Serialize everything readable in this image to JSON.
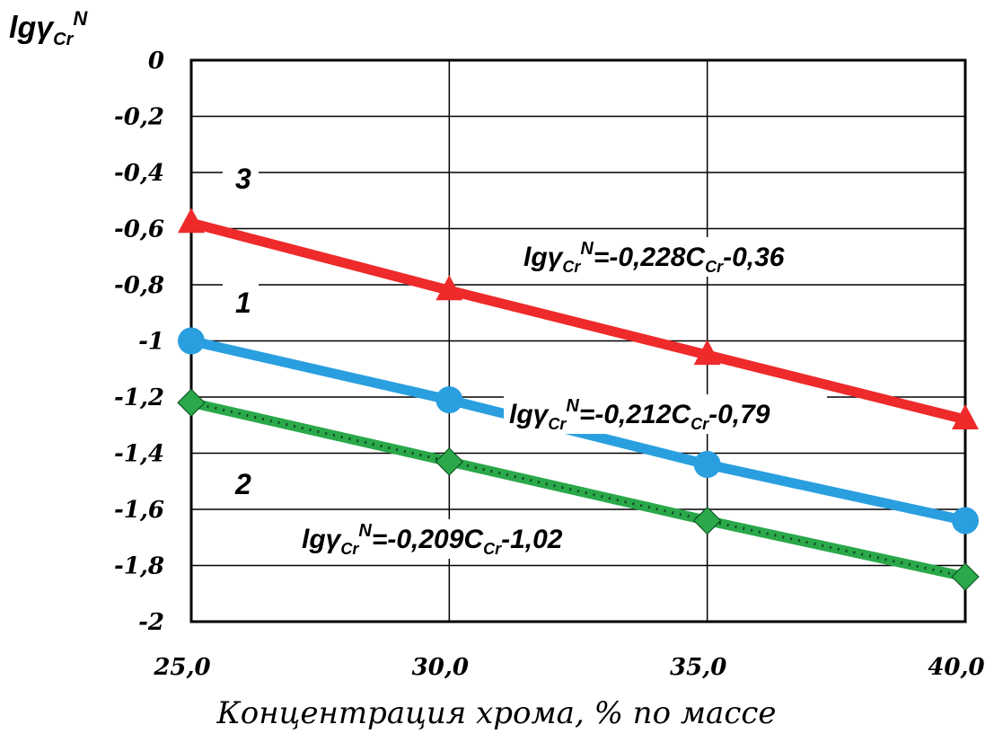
{
  "chart_data": {
    "type": "line",
    "ylabel_main": "lgγ",
    "ylabel_sub": "Cr",
    "ylabel_sup": "N",
    "xlabel": "Концентрация хрома, % по массе",
    "x": [
      25.0,
      30.0,
      35.0,
      40.0
    ],
    "x_tick_labels": [
      "25,0",
      "30,0",
      "35,0",
      "40,0"
    ],
    "ylim": [
      -2,
      0
    ],
    "y_ticks": [
      0,
      -0.2,
      -0.4,
      -0.6,
      -0.8,
      -1,
      -1.2,
      -1.4,
      -1.6,
      -1.8,
      -2
    ],
    "y_tick_labels": [
      "0",
      "-0,2",
      "-0,4",
      "-0,6",
      "-0,8",
      "-1",
      "-1,2",
      "-1,4",
      "-1,6",
      "-1,8",
      "-2"
    ],
    "grid": true,
    "series": [
      {
        "label_number": "3",
        "color": "#ee2a2a",
        "marker": "triangle",
        "values": [
          -0.58,
          -0.82,
          -1.05,
          -1.28
        ],
        "equation": {
          "prefix": "lgγ",
          "sub": "Cr",
          "sup": "N",
          "rest": "=-0,228C",
          "rest_sub": "Cr",
          "tail": "-0,36"
        }
      },
      {
        "label_number": "1",
        "color": "#2a9fe0",
        "marker": "circle",
        "values": [
          -1.0,
          -1.21,
          -1.44,
          -1.64
        ],
        "equation": {
          "prefix": "lgγ",
          "sub": "Cr",
          "sup": "N",
          "rest": "=-0,212C",
          "rest_sub": "Cr",
          "tail": "-0,79"
        }
      },
      {
        "label_number": "2",
        "color": "#2aa84a",
        "marker": "diamond",
        "values": [
          -1.22,
          -1.43,
          -1.64,
          -1.84
        ],
        "equation": {
          "prefix": "lgγ",
          "sub": "Cr",
          "sup": "N",
          "rest": "=-0,209C",
          "rest_sub": "Cr",
          "tail": "-1,02"
        }
      }
    ]
  }
}
